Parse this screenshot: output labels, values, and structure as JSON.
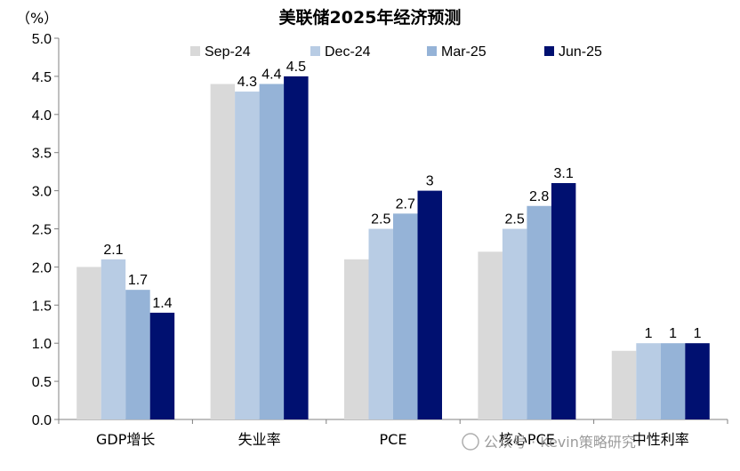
{
  "chart_data": {
    "type": "bar",
    "title": "美联储2025年经济预测",
    "unit_label": "（%）",
    "categories": [
      "GDP增长",
      "失业率",
      "PCE",
      "核心PCE",
      "中性利率"
    ],
    "series": [
      {
        "name": "Sep-24",
        "color": "#d9d9d9",
        "values": [
          2.0,
          4.4,
          2.1,
          2.2,
          0.9
        ],
        "labels": [
          "",
          "",
          "",
          "",
          ""
        ]
      },
      {
        "name": "Dec-24",
        "color": "#b8cce4",
        "values": [
          2.1,
          4.3,
          2.5,
          2.5,
          1.0
        ],
        "labels": [
          "2.1",
          "4.3",
          "2.5",
          "2.5",
          "1"
        ]
      },
      {
        "name": "Mar-25",
        "color": "#95b3d7",
        "values": [
          1.7,
          4.4,
          2.7,
          2.8,
          1.0
        ],
        "labels": [
          "1.7",
          "4.4",
          "2.7",
          "2.8",
          "1"
        ]
      },
      {
        "name": "Jun-25",
        "color": "#001070",
        "values": [
          1.4,
          4.5,
          3.0,
          3.1,
          1.0
        ],
        "labels": [
          "1.4",
          "4.5",
          "3",
          "3.1",
          "1"
        ]
      }
    ],
    "ylim": [
      0,
      5
    ],
    "yticks": [
      "0.0",
      "0.5",
      "1.0",
      "1.5",
      "2.0",
      "2.5",
      "3.0",
      "3.5",
      "4.0",
      "4.5",
      "5.0"
    ],
    "legend_position": "top",
    "grid": false
  },
  "watermark": "公众号 · Kevin策略研究"
}
